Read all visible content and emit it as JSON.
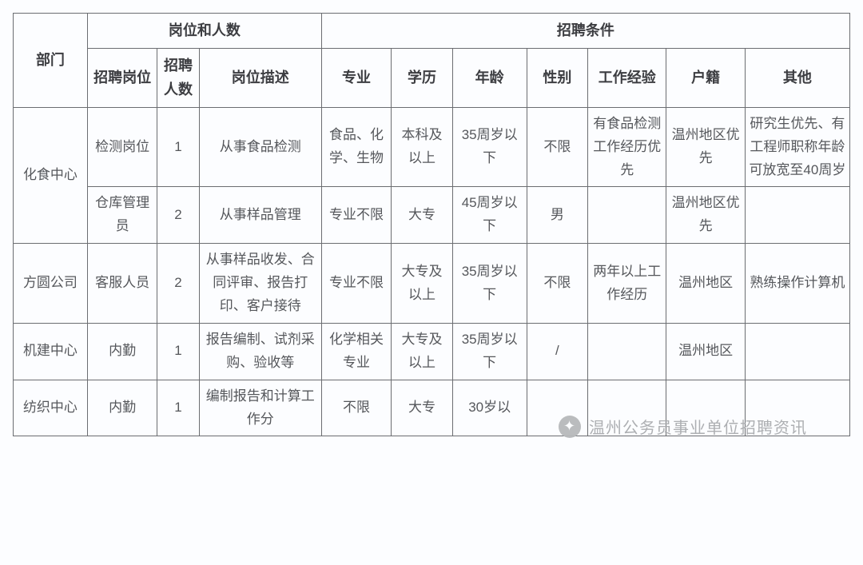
{
  "style": {
    "border_color": "#6b6d71",
    "body_text_color": "#55575b",
    "header_text_color": "#3c3d41",
    "background": "#fcfdff",
    "font_size_header": 18,
    "font_size_body": 17,
    "col_widths_pct": [
      8.5,
      8.0,
      4.8,
      14.0,
      8.0,
      7.0,
      8.5,
      7.0,
      9.0,
      9.0,
      12.0
    ]
  },
  "headers": {
    "dept": "部门",
    "group_position": "岗位和人数",
    "group_condition": "招聘条件",
    "col_position": "招聘岗位",
    "col_count": "招聘人数",
    "col_desc": "岗位描述",
    "col_major": "专业",
    "col_edu": "学历",
    "col_age": "年龄",
    "col_gender": "性别",
    "col_exp": "工作经验",
    "col_residence": "户籍",
    "col_other": "其他"
  },
  "rows": [
    {
      "dept": "化食中心",
      "dept_rowspan": 2,
      "position": "检测岗位",
      "count": "1",
      "desc": "从事食品检测",
      "major": "食品、化学、生物",
      "edu": "本科及以上",
      "age": "35周岁以下",
      "gender": "不限",
      "exp": "有食品检测工作经历优先",
      "residence": "温州地区优先",
      "other": "研究生优先、有工程师职称年龄可放宽至40周岁"
    },
    {
      "position": "仓库管理员",
      "count": "2",
      "desc": "从事样品管理",
      "major": "专业不限",
      "edu": "大专",
      "age": "45周岁以下",
      "gender": "男",
      "exp": "",
      "residence": "温州地区优先",
      "other": ""
    },
    {
      "dept": "方圆公司",
      "dept_rowspan": 1,
      "position": "客服人员",
      "count": "2",
      "desc": "从事样品收发、合同评审、报告打印、客户接待",
      "major": "专业不限",
      "edu": "大专及以上",
      "age": "35周岁以下",
      "gender": "不限",
      "exp": "两年以上工作经历",
      "residence": "温州地区",
      "other": "熟练操作计算机"
    },
    {
      "dept": "机建中心",
      "dept_rowspan": 1,
      "position": "内勤",
      "count": "1",
      "desc": "报告编制、试剂采购、验收等",
      "major": "化学相关专业",
      "edu": "大专及以上",
      "age": "35周岁以下",
      "gender": "/",
      "exp": "",
      "residence": "温州地区",
      "other": ""
    },
    {
      "dept": "纺织中心",
      "dept_rowspan": 1,
      "position": "内勤",
      "count": "1",
      "desc": "编制报告和计算工作分",
      "major": "不限",
      "edu": "大专",
      "age": "30岁以",
      "gender": "",
      "exp": "",
      "residence": "",
      "other": ""
    }
  ],
  "watermark": {
    "text": "温州公务员事业单位招聘资讯",
    "icon_glyph": "✦"
  }
}
